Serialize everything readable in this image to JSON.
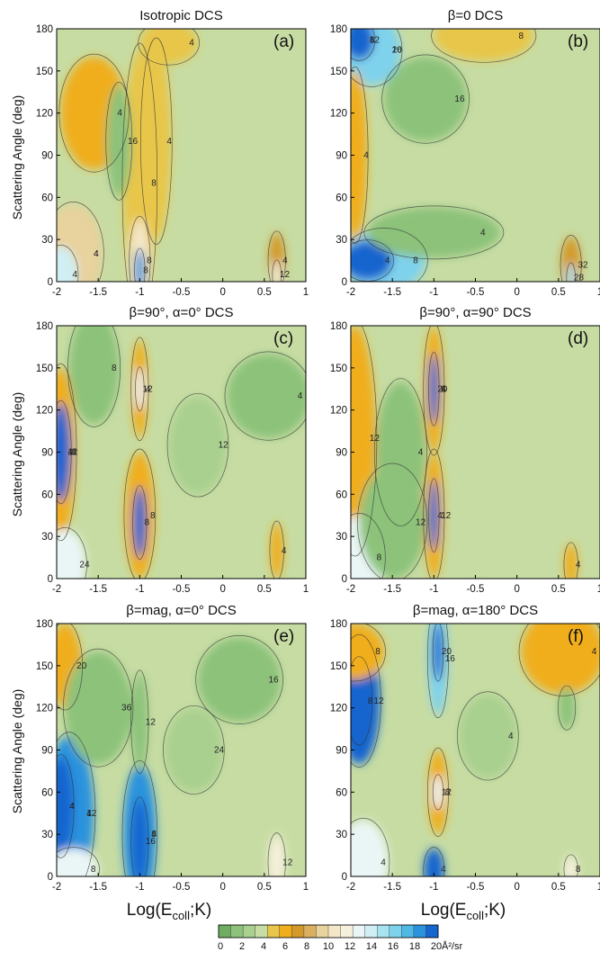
{
  "figure": {
    "xlabel_main": "Log(E",
    "xlabel_sub": "coll",
    "xlabel_tail": ";K)",
    "ylabel": "Scattering Angle (deg)",
    "colorbar": {
      "ticks": [
        "0",
        "2",
        "4",
        "6",
        "8",
        "10",
        "12",
        "14",
        "16",
        "18",
        "20"
      ],
      "unit": "Å²/sr",
      "colors": [
        "#6fae62",
        "#8cc27a",
        "#a9d08f",
        "#c6dea6",
        "#e8c64a",
        "#f0ae1c",
        "#d39a2a",
        "#d8b060",
        "#e8d29d",
        "#f3e7c7",
        "#f6f1dc",
        "#eaf6f6",
        "#cfeff4",
        "#a8e4f0",
        "#7fd2ec",
        "#4fb9e6",
        "#2b93dd",
        "#1565cf"
      ]
    }
  },
  "chart_data": [
    {
      "type": "heatmap",
      "panel": "a",
      "title": "Isotropic DCS",
      "label": "(a)",
      "xlim": [
        -2,
        1
      ],
      "ylim": [
        0,
        180
      ],
      "xticks": [
        "-2",
        "-1.5",
        "-1",
        "-0.5",
        "0",
        "0.5",
        "1"
      ],
      "yticks": [
        "0",
        "30",
        "60",
        "90",
        "120",
        "150",
        "180"
      ],
      "contour_labels": [
        "4",
        "4",
        "4",
        "8",
        "8",
        "8",
        "4",
        "4",
        "4",
        "12",
        "16",
        "4"
      ]
    },
    {
      "type": "heatmap",
      "panel": "b",
      "title": "β=0 DCS",
      "label": "(b)",
      "xlim": [
        -2,
        1
      ],
      "ylim": [
        0,
        180
      ],
      "xticks": [
        "-2",
        "-1.5",
        "-1",
        "-0.5",
        "0",
        "0.5",
        "1"
      ],
      "yticks": [
        "0",
        "30",
        "60",
        "90",
        "120",
        "150",
        "180"
      ],
      "contour_labels": [
        "16",
        "12",
        "8",
        "4",
        "4",
        "8",
        "4",
        "32",
        "28",
        "16",
        "20",
        "8"
      ]
    },
    {
      "type": "heatmap",
      "panel": "c",
      "title": "β=90°, α=0° DCS",
      "label": "(c)",
      "xlim": [
        -2,
        1
      ],
      "ylim": [
        0,
        180
      ],
      "xticks": [
        "-2",
        "-1.5",
        "-1",
        "-0.5",
        "0",
        "0.5",
        "1"
      ],
      "yticks": [
        "0",
        "30",
        "60",
        "90",
        "120",
        "150",
        "180"
      ],
      "contour_labels": [
        "4",
        "12",
        "8",
        "8",
        "4",
        "12",
        "24",
        "8",
        "12",
        "4",
        "4",
        "8",
        "4"
      ]
    },
    {
      "type": "heatmap",
      "panel": "d",
      "title": "β=90°, α=90° DCS",
      "label": "(d)",
      "xlim": [
        -2,
        1
      ],
      "ylim": [
        0,
        180
      ],
      "xticks": [
        "-2",
        "-1.5",
        "-1",
        "-0.5",
        "0",
        "0.5",
        "1"
      ],
      "yticks": [
        "0",
        "30",
        "60",
        "90",
        "120",
        "150",
        "180"
      ],
      "contour_labels": [
        "4",
        "20",
        "12",
        "4",
        "12",
        "8",
        "4",
        "4",
        "12",
        "8"
      ]
    },
    {
      "type": "heatmap",
      "panel": "e",
      "title": "β=mag, α=0° DCS",
      "label": "(e)",
      "xlim": [
        -2,
        1
      ],
      "ylim": [
        0,
        180
      ],
      "xticks": [
        "-2",
        "-1.5",
        "-1",
        "-0.5",
        "0",
        "0.5",
        "1"
      ],
      "yticks": [
        "0",
        "30",
        "60",
        "90",
        "120",
        "150",
        "180"
      ],
      "contour_labels": [
        "4",
        "4",
        "4",
        "16",
        "20",
        "12",
        "24",
        "8",
        "12",
        "36",
        "16",
        "12",
        "4",
        "8"
      ]
    },
    {
      "type": "heatmap",
      "panel": "f",
      "title": "β=mag, α=180° DCS",
      "label": "(f)",
      "xlim": [
        -2,
        1
      ],
      "ylim": [
        0,
        180
      ],
      "xticks": [
        "-2",
        "-1.5",
        "-1",
        "-0.5",
        "0",
        "0.5",
        "1"
      ],
      "yticks": [
        "0",
        "30",
        "60",
        "90",
        "120",
        "150",
        "180"
      ],
      "contour_labels": [
        "12",
        "8",
        "16",
        "20",
        "8",
        "12",
        "8",
        "4",
        "4",
        "8",
        "4",
        "4"
      ]
    }
  ]
}
